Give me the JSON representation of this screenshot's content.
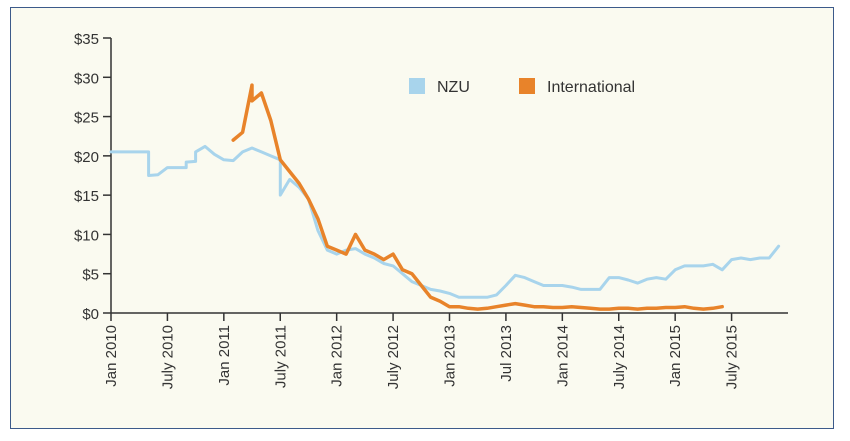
{
  "chart_data": {
    "type": "line",
    "title": "",
    "xlabel": "",
    "ylabel": "",
    "ylim": [
      0,
      35
    ],
    "xlim": [
      "2010-01",
      "2016-01"
    ],
    "y_ticks": [
      0,
      5,
      10,
      15,
      20,
      25,
      30,
      35
    ],
    "y_tick_labels": [
      "$0",
      "$5",
      "$10",
      "$15",
      "$20",
      "$25",
      "$30",
      "$35"
    ],
    "x_ticks": [
      "2010-01",
      "2010-07",
      "2011-01",
      "2011-07",
      "2012-01",
      "2012-07",
      "2013-01",
      "2013-07",
      "2014-01",
      "2014-07",
      "2015-01",
      "2015-07"
    ],
    "x_tick_labels": [
      "Jan 2010",
      "July 2010",
      "Jan 2011",
      "July 2011",
      "Jan 2012",
      "July 2012",
      "Jan 2013",
      "Jul 2013",
      "Jan 2014",
      "July 2014",
      "Jan 2015",
      "July 2015"
    ],
    "grid": false,
    "legend_position": "top-center",
    "series": [
      {
        "name": "NZU",
        "color": "#a8d4ec",
        "points": [
          [
            "2010-01",
            20.5
          ],
          [
            "2010-05",
            20.5
          ],
          [
            "2010-05",
            17.5
          ],
          [
            "2010-06",
            17.6
          ],
          [
            "2010-07",
            18.5
          ],
          [
            "2010-09",
            18.5
          ],
          [
            "2010-09",
            19.2
          ],
          [
            "2010-10",
            19.3
          ],
          [
            "2010-10",
            20.5
          ],
          [
            "2010-11",
            21.2
          ],
          [
            "2010-12",
            20.2
          ],
          [
            "2011-01",
            19.5
          ],
          [
            "2011-02",
            19.4
          ],
          [
            "2011-03",
            20.5
          ],
          [
            "2011-04",
            21.0
          ],
          [
            "2011-05",
            20.5
          ],
          [
            "2011-06",
            20.0
          ],
          [
            "2011-07",
            19.5
          ],
          [
            "2011-07",
            15.0
          ],
          [
            "2011-08",
            17.0
          ],
          [
            "2011-09",
            16.0
          ],
          [
            "2011-10",
            14.5
          ],
          [
            "2011-11",
            10.5
          ],
          [
            "2011-12",
            8.0
          ],
          [
            "2012-01",
            7.5
          ],
          [
            "2012-02",
            8.0
          ],
          [
            "2012-03",
            8.2
          ],
          [
            "2012-04",
            7.5
          ],
          [
            "2012-05",
            7.0
          ],
          [
            "2012-06",
            6.3
          ],
          [
            "2012-07",
            6.0
          ],
          [
            "2012-08",
            5.0
          ],
          [
            "2012-09",
            4.0
          ],
          [
            "2012-10",
            3.5
          ],
          [
            "2012-11",
            3.0
          ],
          [
            "2012-12",
            2.8
          ],
          [
            "2013-01",
            2.5
          ],
          [
            "2013-02",
            2.0
          ],
          [
            "2013-03",
            2.0
          ],
          [
            "2013-04",
            2.0
          ],
          [
            "2013-05",
            2.0
          ],
          [
            "2013-06",
            2.3
          ],
          [
            "2013-07",
            3.5
          ],
          [
            "2013-08",
            4.8
          ],
          [
            "2013-09",
            4.5
          ],
          [
            "2013-10",
            4.0
          ],
          [
            "2013-11",
            3.5
          ],
          [
            "2013-12",
            3.5
          ],
          [
            "2014-01",
            3.5
          ],
          [
            "2014-02",
            3.3
          ],
          [
            "2014-03",
            3.0
          ],
          [
            "2014-04",
            3.0
          ],
          [
            "2014-05",
            3.0
          ],
          [
            "2014-06",
            4.5
          ],
          [
            "2014-07",
            4.5
          ],
          [
            "2014-08",
            4.2
          ],
          [
            "2014-09",
            3.8
          ],
          [
            "2014-10",
            4.3
          ],
          [
            "2014-11",
            4.5
          ],
          [
            "2014-12",
            4.3
          ],
          [
            "2015-01",
            5.5
          ],
          [
            "2015-02",
            6.0
          ],
          [
            "2015-03",
            6.0
          ],
          [
            "2015-04",
            6.0
          ],
          [
            "2015-05",
            6.2
          ],
          [
            "2015-06",
            5.5
          ],
          [
            "2015-07",
            6.8
          ],
          [
            "2015-08",
            7.0
          ],
          [
            "2015-09",
            6.8
          ],
          [
            "2015-10",
            7.0
          ],
          [
            "2015-11",
            7.0
          ],
          [
            "2015-12",
            8.5
          ]
        ]
      },
      {
        "name": "International",
        "color": "#e8832a",
        "points": [
          [
            "2011-02",
            22.0
          ],
          [
            "2011-03",
            23.0
          ],
          [
            "2011-04",
            29.0
          ],
          [
            "2011-04",
            27.0
          ],
          [
            "2011-05",
            28.0
          ],
          [
            "2011-06",
            24.5
          ],
          [
            "2011-07",
            19.5
          ],
          [
            "2011-08",
            18.0
          ],
          [
            "2011-09",
            16.5
          ],
          [
            "2011-10",
            14.5
          ],
          [
            "2011-11",
            12.0
          ],
          [
            "2011-12",
            8.5
          ],
          [
            "2012-01",
            8.0
          ],
          [
            "2012-02",
            7.5
          ],
          [
            "2012-03",
            10.0
          ],
          [
            "2012-04",
            8.0
          ],
          [
            "2012-05",
            7.5
          ],
          [
            "2012-06",
            6.8
          ],
          [
            "2012-07",
            7.5
          ],
          [
            "2012-08",
            5.5
          ],
          [
            "2012-09",
            5.0
          ],
          [
            "2012-10",
            3.5
          ],
          [
            "2012-11",
            2.0
          ],
          [
            "2012-12",
            1.5
          ],
          [
            "2013-01",
            0.8
          ],
          [
            "2013-02",
            0.8
          ],
          [
            "2013-03",
            0.6
          ],
          [
            "2013-04",
            0.5
          ],
          [
            "2013-05",
            0.6
          ],
          [
            "2013-06",
            0.8
          ],
          [
            "2013-07",
            1.0
          ],
          [
            "2013-08",
            1.2
          ],
          [
            "2013-09",
            1.0
          ],
          [
            "2013-10",
            0.8
          ],
          [
            "2013-11",
            0.8
          ],
          [
            "2013-12",
            0.7
          ],
          [
            "2014-01",
            0.7
          ],
          [
            "2014-02",
            0.8
          ],
          [
            "2014-03",
            0.7
          ],
          [
            "2014-04",
            0.6
          ],
          [
            "2014-05",
            0.5
          ],
          [
            "2014-06",
            0.5
          ],
          [
            "2014-07",
            0.6
          ],
          [
            "2014-08",
            0.6
          ],
          [
            "2014-09",
            0.5
          ],
          [
            "2014-10",
            0.6
          ],
          [
            "2014-11",
            0.6
          ],
          [
            "2014-12",
            0.7
          ],
          [
            "2015-01",
            0.7
          ],
          [
            "2015-02",
            0.8
          ],
          [
            "2015-03",
            0.6
          ],
          [
            "2015-04",
            0.5
          ],
          [
            "2015-05",
            0.6
          ],
          [
            "2015-06",
            0.8
          ]
        ]
      }
    ]
  }
}
